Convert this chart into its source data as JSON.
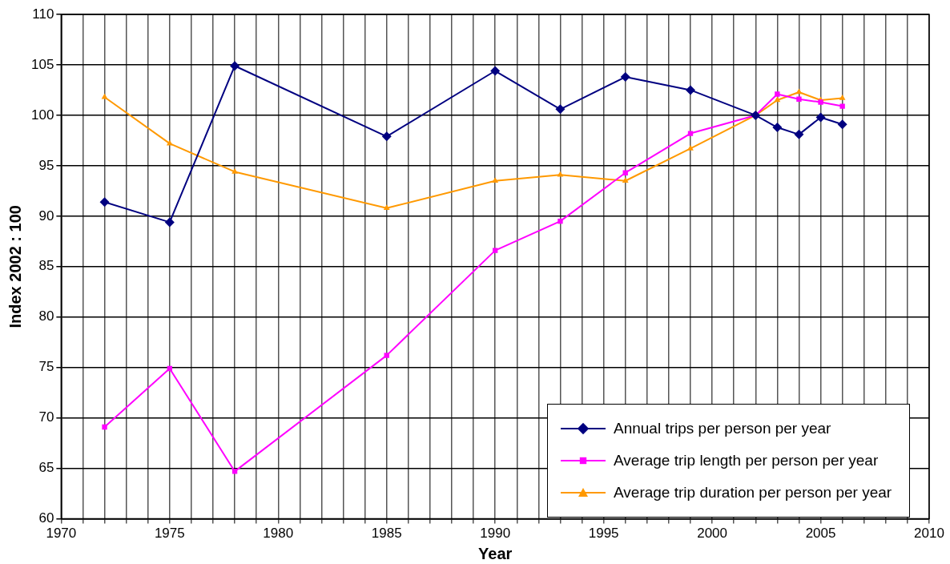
{
  "chart_data": {
    "type": "line",
    "xlabel": "Year",
    "ylabel": "Index 2002 : 100",
    "x": [
      1972,
      1975,
      1978,
      1985,
      1990,
      1993,
      1996,
      1999,
      2002,
      2003,
      2004,
      2005,
      2006
    ],
    "series": [
      {
        "name": "Annual trips per person per year",
        "color": "#000080",
        "marker": "diamond",
        "values": [
          91.4,
          89.4,
          104.9,
          97.9,
          104.4,
          100.6,
          103.8,
          102.5,
          100,
          98.8,
          98.1,
          99.8,
          99.1
        ]
      },
      {
        "name": "Average trip length per person per year",
        "color": "#ff00ff",
        "marker": "square",
        "values": [
          69.1,
          74.9,
          64.7,
          76.2,
          86.6,
          89.5,
          94.3,
          98.2,
          100,
          102.1,
          101.6,
          101.3,
          100.9
        ]
      },
      {
        "name": "Average trip duration per person per year",
        "color": "#ff9900",
        "marker": "triangle",
        "values": [
          101.8,
          97.2,
          94.4,
          90.8,
          93.5,
          94.1,
          93.5,
          96.7,
          100,
          101.5,
          102.3,
          101.5,
          101.7
        ]
      }
    ],
    "xlim": [
      1970,
      2010
    ],
    "xticks": [
      1970,
      {
        "value": 1971,
        "label": null
      },
      {
        "value": 1972,
        "label": null
      },
      {
        "value": 1973,
        "label": null
      },
      {
        "value": 1974,
        "label": null
      },
      1975,
      {
        "value": 1976,
        "label": null
      },
      {
        "value": 1977,
        "label": null
      },
      {
        "value": 1978,
        "label": null
      },
      {
        "value": 1979,
        "label": null
      },
      1980,
      {
        "value": 1981,
        "label": null
      },
      {
        "value": 1982,
        "label": null
      },
      {
        "value": 1983,
        "label": null
      },
      {
        "value": 1984,
        "label": null
      },
      1985,
      {
        "value": 1986,
        "label": null
      },
      {
        "value": 1987,
        "label": null
      },
      {
        "value": 1988,
        "label": null
      },
      {
        "value": 1989,
        "label": null
      },
      1990,
      {
        "value": 1991,
        "label": null
      },
      {
        "value": 1992,
        "label": null
      },
      {
        "value": 1993,
        "label": null
      },
      {
        "value": 1994,
        "label": null
      },
      1995,
      {
        "value": 1996,
        "label": null
      },
      {
        "value": 1997,
        "label": null
      },
      {
        "value": 1998,
        "label": null
      },
      {
        "value": 1999,
        "label": null
      },
      2000,
      {
        "value": 2001,
        "label": null
      },
      {
        "value": 2002,
        "label": null
      },
      {
        "value": 2003,
        "label": null
      },
      {
        "value": 2004,
        "label": null
      },
      2005,
      {
        "value": 2006,
        "label": null
      },
      {
        "value": 2007,
        "label": null
      },
      {
        "value": 2008,
        "label": null
      },
      {
        "value": 2009,
        "label": null
      },
      2010
    ],
    "ylim": [
      60,
      110
    ],
    "yticks": [
      60,
      65,
      70,
      75,
      80,
      85,
      90,
      95,
      100,
      105,
      110
    ],
    "grid": true,
    "legend": "bottom right",
    "line_style": "solid"
  }
}
